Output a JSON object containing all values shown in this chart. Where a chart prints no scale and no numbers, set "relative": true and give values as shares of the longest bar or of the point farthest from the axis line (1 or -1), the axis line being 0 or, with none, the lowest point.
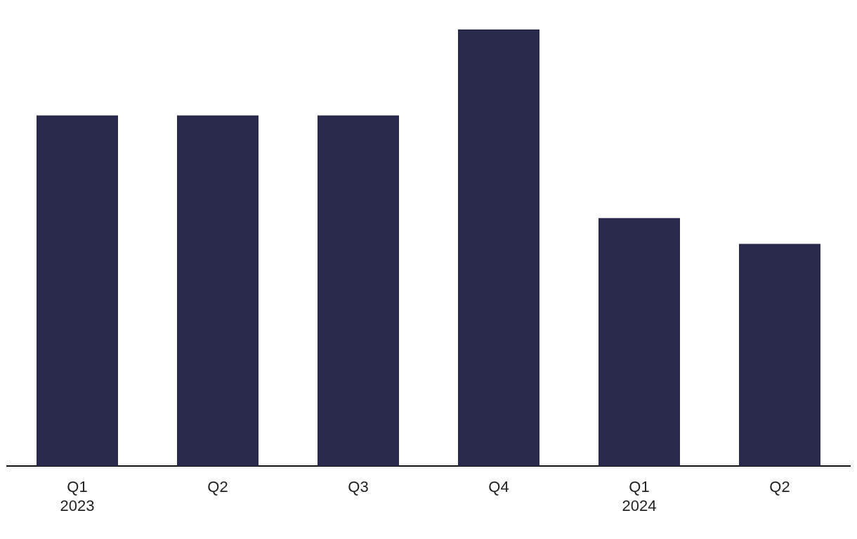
{
  "chart_data": {
    "type": "bar",
    "relative": true,
    "categories": [
      "Q1\n2023",
      "Q2",
      "Q3",
      "Q4",
      "Q1\n2024",
      "Q2"
    ],
    "values": [
      0.803,
      0.803,
      0.803,
      1,
      0.568,
      0.509
    ],
    "color": "#29294b",
    "grid": false,
    "legend": false
  }
}
